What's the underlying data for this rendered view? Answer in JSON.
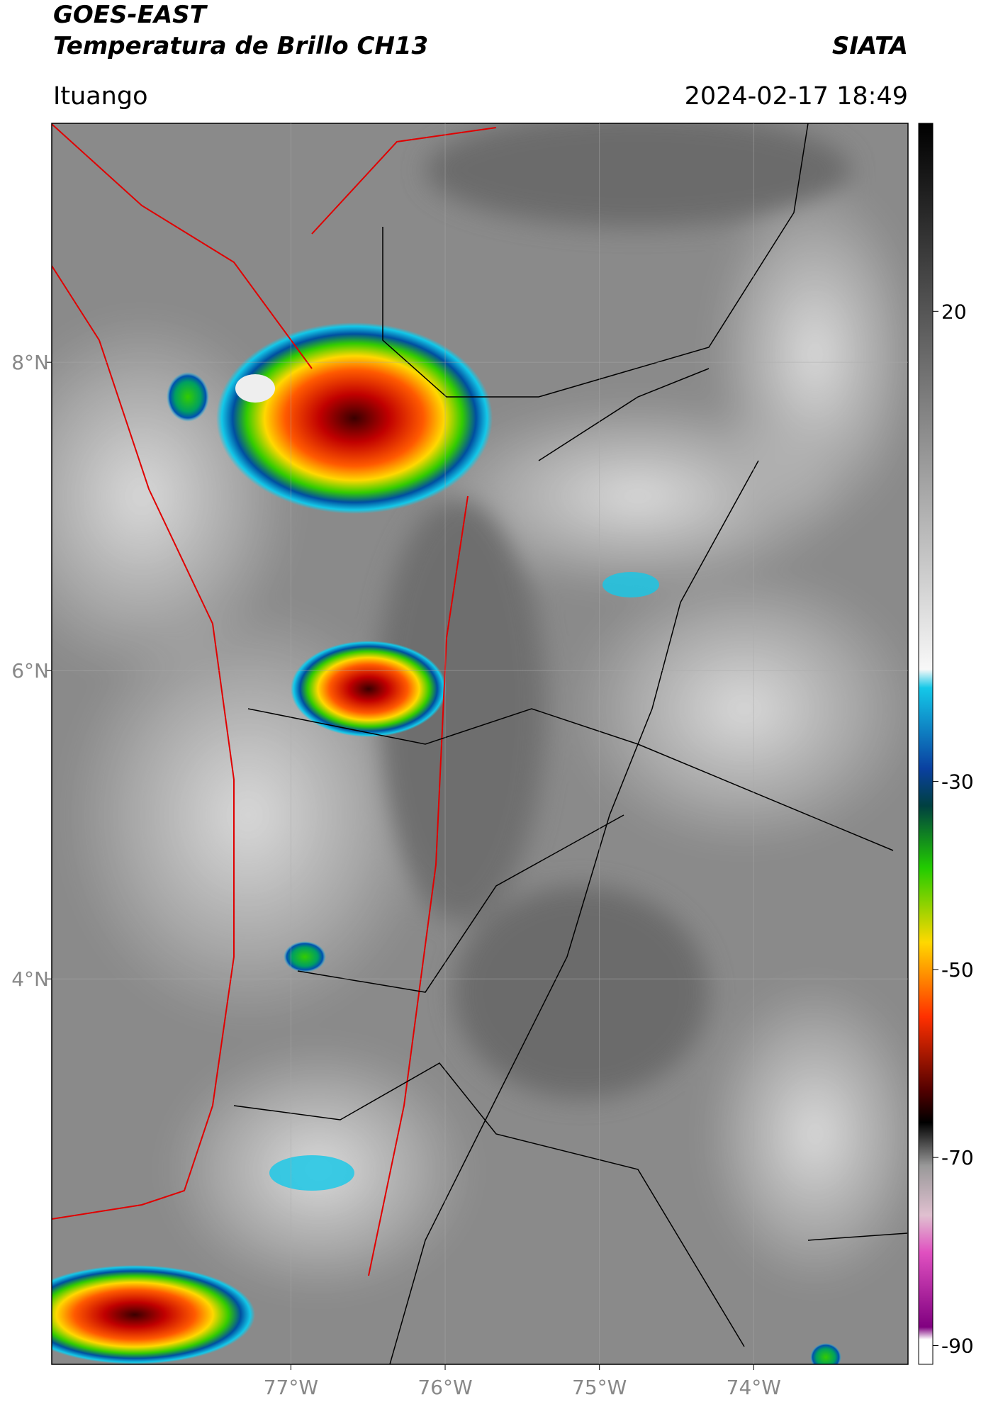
{
  "header": {
    "title": "GOES-EAST",
    "subtitle": "Temperatura de Brillo CH13",
    "brand": "SIATA",
    "location": "Ituango",
    "datetime": "2024-02-17 18:49"
  },
  "map": {
    "xlim": [
      -78.55,
      -73.0
    ],
    "ylim": [
      1.5,
      9.55
    ],
    "xticks": [
      {
        "value": -77,
        "label": "77°W"
      },
      {
        "value": -76,
        "label": "76°W"
      },
      {
        "value": -75,
        "label": "75°W"
      },
      {
        "value": -74,
        "label": "74°W"
      }
    ],
    "yticks": [
      {
        "value": 8,
        "label": "8°N"
      },
      {
        "value": 6,
        "label": "6°N"
      },
      {
        "value": 4,
        "label": "4°N"
      }
    ],
    "grid": true,
    "colorbar": {
      "clim": [
        -92,
        40
      ],
      "ticks": [
        20,
        -30,
        -50,
        -70,
        -90
      ]
    }
  }
}
